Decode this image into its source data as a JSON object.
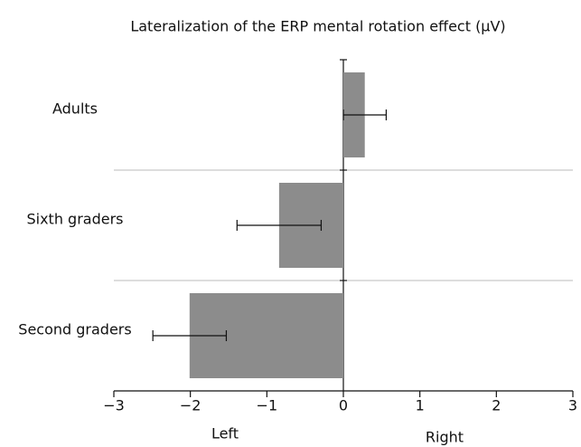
{
  "chart_data": {
    "type": "hbar",
    "title": "Lateralization of the ERP mental rotation effect (μV)",
    "categories": [
      "Adults",
      "Sixth graders",
      "Second graders"
    ],
    "values": [
      0.28,
      -0.84,
      -2.01
    ],
    "errors": [
      0.28,
      0.55,
      0.48
    ],
    "color": "#8c8c8c",
    "xlim": [
      -3,
      3
    ],
    "xticks": [
      {
        "value": -3,
        "label": "−3"
      },
      {
        "value": -2,
        "label": "−2"
      },
      {
        "value": -1,
        "label": "−1"
      },
      0,
      1,
      2,
      3
    ],
    "xlabels": [
      "Left",
      "Right"
    ]
  }
}
